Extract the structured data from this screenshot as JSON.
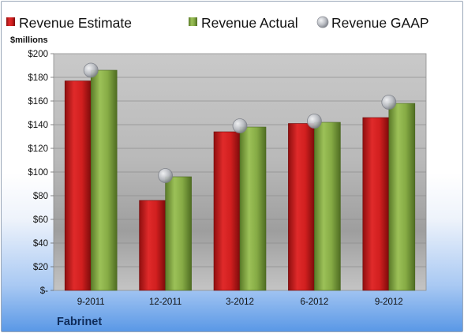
{
  "chart_data": {
    "type": "bar",
    "unit_label": "$millions",
    "categories": [
      "9-2011",
      "12-2011",
      "3-2012",
      "6-2012",
      "9-2012"
    ],
    "series": [
      {
        "name": "Revenue Estimate",
        "type": "bar",
        "color": "#d11f1f",
        "values": [
          177,
          76,
          134,
          141,
          146
        ]
      },
      {
        "name": "Revenue Actual",
        "type": "bar",
        "color": "#7fa43e",
        "values": [
          186,
          96,
          138,
          142,
          158
        ]
      },
      {
        "name": "Revenue GAAP",
        "type": "marker",
        "color": "#b9bcc2",
        "values": [
          186,
          97,
          139,
          143,
          159
        ]
      }
    ],
    "ylim": [
      0,
      200
    ],
    "yticks": [
      {
        "value": 0,
        "label": "$-"
      },
      {
        "value": 20,
        "label": "$20"
      },
      {
        "value": 40,
        "label": "$40"
      },
      {
        "value": 60,
        "label": "$60"
      },
      {
        "value": 80,
        "label": "$80"
      },
      {
        "value": 100,
        "label": "$100"
      },
      {
        "value": 120,
        "label": "$120"
      },
      {
        "value": 140,
        "label": "$140"
      },
      {
        "value": 160,
        "label": "$160"
      },
      {
        "value": 180,
        "label": "$180"
      },
      {
        "value": 200,
        "label": "$200"
      }
    ],
    "grid": true,
    "legend_position": "top",
    "company": "Fabrinet"
  }
}
